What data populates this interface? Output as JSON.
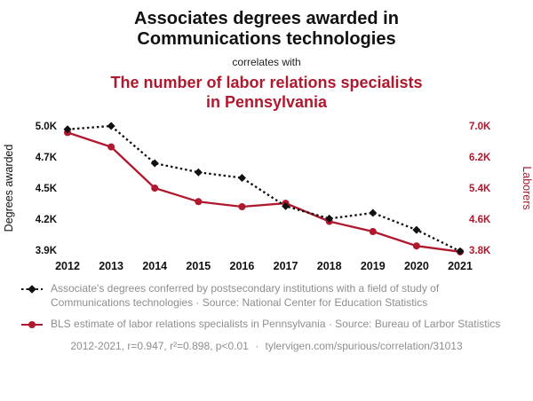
{
  "header": {
    "title": "Associates degrees awarded in Communications technologies",
    "connector": "correlates with",
    "subtitle": "The number of labor relations specialists in Pennsylvania"
  },
  "colors": {
    "accent_red": "#b0182d",
    "series_black": "#111111",
    "legend_gray": "#8e8e8e"
  },
  "chart_data": {
    "type": "line",
    "x": [
      2012,
      2013,
      2014,
      2015,
      2016,
      2017,
      2018,
      2019,
      2020,
      2021
    ],
    "series": [
      {
        "name": "Associate's degrees conferred in Communications technologies",
        "axis": "left",
        "color": "#111111",
        "line_style": "dotted",
        "marker": "diamond",
        "values": [
          4970,
          5000,
          4670,
          4590,
          4540,
          4290,
          4180,
          4230,
          4080,
          3890
        ]
      },
      {
        "name": "Labor relations specialists in Pennsylvania",
        "axis": "right",
        "color": "#b0182d",
        "line_style": "solid",
        "marker": "circle",
        "values": [
          6830,
          6460,
          5400,
          5050,
          4920,
          5010,
          4540,
          4280,
          3910,
          3760
        ]
      }
    ],
    "left_axis": {
      "label": "Degrees awarded",
      "ticks": [
        "5.0K",
        "4.7K",
        "4.5K",
        "4.2K",
        "3.9K"
      ],
      "tick_values": [
        5000,
        4725,
        4450,
        4175,
        3900
      ],
      "range": [
        3900,
        5000
      ]
    },
    "right_axis": {
      "label": "Laborers",
      "ticks": [
        "7.0K",
        "6.2K",
        "5.4K",
        "4.6K",
        "3.8K"
      ],
      "tick_values": [
        7000,
        6200,
        5400,
        4600,
        3800
      ],
      "range": [
        3800,
        7000
      ]
    },
    "grid": false,
    "legend_position": "bottom"
  },
  "legend": [
    {
      "label": "Associate's degrees conferred by postsecondary institutions with a field of study of Communications technologies · Source: National Center for Education Statistics"
    },
    {
      "label": "BLS estimate of labor relations specialists in Pennsylvania · Source: Bureau of Larbor Statistics"
    }
  ],
  "footer": {
    "stats": "2012-2021, r=0.947, r²=0.898, p<0.01",
    "separator": "·",
    "link": "tylervigen.com/spurious/correlation/31013"
  }
}
